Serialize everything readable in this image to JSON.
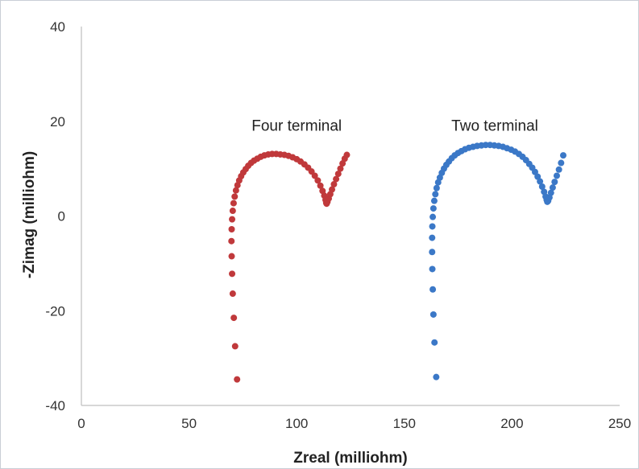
{
  "chart_data": {
    "type": "scatter",
    "xlabel": "Zreal (milliohm)",
    "ylabel": "-Zimag (milliohm)",
    "xlim": [
      0,
      250
    ],
    "ylim": [
      -40,
      40
    ],
    "xticks": [
      0,
      50,
      100,
      150,
      200,
      250
    ],
    "yticks": [
      -40,
      -20,
      0,
      20,
      40
    ],
    "grid": false,
    "annotations": [
      {
        "text": "Four terminal",
        "x": 100,
        "y": 19
      },
      {
        "text": "Two terminal",
        "x": 192,
        "y": 19
      }
    ],
    "colors": {
      "four_terminal": "#c0393b",
      "two_terminal": "#3b78c7"
    },
    "series": [
      {
        "label_key": "four_terminal",
        "x": [
          72.3,
          71.4,
          70.8,
          70.3,
          70.0,
          69.8,
          69.7,
          69.8,
          70.0,
          70.3,
          70.7,
          71.2,
          71.8,
          72.5,
          73.3,
          74.2,
          75.2,
          76.3,
          77.5,
          78.8,
          80.2,
          81.7,
          83.3,
          85.0,
          86.8,
          88.6,
          90.5,
          92.4,
          94.3,
          96.2,
          98.1,
          100.0,
          101.8,
          103.6,
          105.3,
          106.9,
          108.4,
          109.8,
          111.0,
          112.0,
          112.8,
          113.4,
          113.7,
          113.9,
          114.3,
          114.9,
          115.6,
          116.4,
          117.3,
          118.3,
          119.3,
          120.3,
          121.3,
          122.3,
          123.3
        ],
        "y": [
          -34.5,
          -27.5,
          -21.5,
          -16.4,
          -12.2,
          -8.5,
          -5.3,
          -2.8,
          -0.7,
          1.1,
          2.7,
          4.1,
          5.4,
          6.5,
          7.5,
          8.4,
          9.2,
          9.9,
          10.6,
          11.2,
          11.7,
          12.1,
          12.5,
          12.8,
          13.0,
          13.1,
          13.1,
          13.0,
          12.9,
          12.7,
          12.4,
          12.0,
          11.5,
          10.9,
          10.2,
          9.4,
          8.5,
          7.5,
          6.4,
          5.3,
          4.3,
          3.4,
          2.8,
          2.6,
          3.0,
          3.7,
          4.6,
          5.6,
          6.7,
          7.8,
          8.9,
          10.0,
          11.1,
          12.1,
          12.9
        ]
      },
      {
        "label_key": "two_terminal",
        "x": [
          164.8,
          164.0,
          163.5,
          163.2,
          163.0,
          162.9,
          162.9,
          163.0,
          163.2,
          163.5,
          163.9,
          164.4,
          165.0,
          165.7,
          166.5,
          167.4,
          168.4,
          169.5,
          170.7,
          172.0,
          173.4,
          174.9,
          176.5,
          178.2,
          180.0,
          181.9,
          183.8,
          185.8,
          187.8,
          189.8,
          191.8,
          193.8,
          195.8,
          197.7,
          199.6,
          201.4,
          203.2,
          204.9,
          206.5,
          208.0,
          209.4,
          210.7,
          211.9,
          213.0,
          214.0,
          214.9,
          215.6,
          216.1,
          216.4,
          216.8,
          217.4,
          218.1,
          218.9,
          219.8,
          220.8,
          221.8,
          222.8,
          223.8
        ],
        "y": [
          -34.0,
          -26.7,
          -20.8,
          -15.5,
          -11.2,
          -7.6,
          -4.6,
          -2.2,
          -0.2,
          1.6,
          3.2,
          4.6,
          5.9,
          7.1,
          8.1,
          9.1,
          10.0,
          10.8,
          11.5,
          12.2,
          12.8,
          13.3,
          13.7,
          14.1,
          14.4,
          14.6,
          14.8,
          14.9,
          15.0,
          15.0,
          14.9,
          14.8,
          14.6,
          14.3,
          14.0,
          13.6,
          13.1,
          12.5,
          11.8,
          11.0,
          10.2,
          9.3,
          8.3,
          7.3,
          6.2,
          5.1,
          4.1,
          3.4,
          3.0,
          3.2,
          3.9,
          4.9,
          6.0,
          7.2,
          8.5,
          9.8,
          11.2,
          12.8
        ]
      }
    ]
  }
}
